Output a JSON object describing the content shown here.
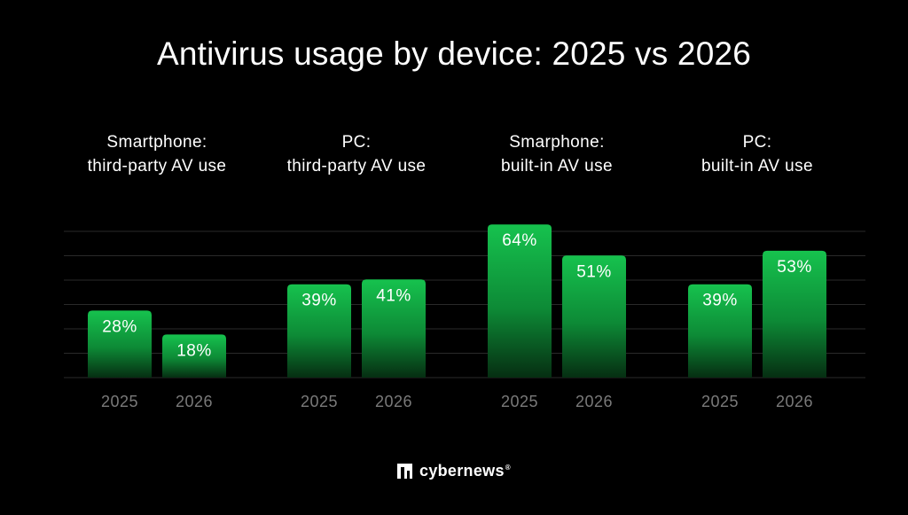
{
  "title": "Antivirus usage by device: 2025 vs 2026",
  "brand": {
    "name": "cybernews",
    "mark": "®",
    "logo_icon": "cybernews-logo-icon"
  },
  "colors": {
    "background": "#000000",
    "bar_top": "#16c24e",
    "bar_bottom": "#062e12",
    "gridline": "#2a2a2a",
    "year_label": "#7a7a7a"
  },
  "chart_data": {
    "type": "bar",
    "title": "Antivirus usage by device: 2025 vs 2026",
    "unit": "%",
    "ylim": [
      0,
      70
    ],
    "grid": true,
    "groups": [
      {
        "label_lines": [
          "Smartphone:",
          "third-party AV use"
        ],
        "years": [
          "2025",
          "2026"
        ],
        "values": [
          28,
          18
        ]
      },
      {
        "label_lines": [
          "PC:",
          "third-party AV use"
        ],
        "years": [
          "2025",
          "2026"
        ],
        "values": [
          39,
          41
        ]
      },
      {
        "label_lines": [
          "Smarphone:",
          "built-in AV use"
        ],
        "years": [
          "2025",
          "2026"
        ],
        "values": [
          64,
          51
        ]
      },
      {
        "label_lines": [
          "PC:",
          "built-in AV use"
        ],
        "years": [
          "2025",
          "2026"
        ],
        "values": [
          39,
          53
        ]
      }
    ]
  }
}
